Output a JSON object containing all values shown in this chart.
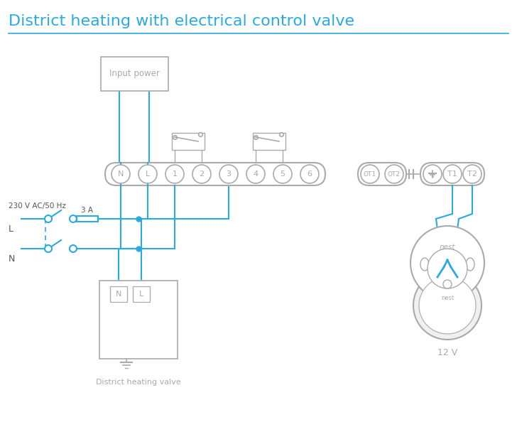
{
  "title": "District heating with electrical control valve",
  "title_color": "#29abe2",
  "title_fontsize": 16,
  "bg_color": "#ffffff",
  "line_color": "#29abe2",
  "component_color": "#aaaaaa",
  "terminal_strip_labels": [
    "N",
    "L",
    "1",
    "2",
    "3",
    "4",
    "5",
    "6"
  ],
  "ot_labels": [
    "OT1",
    "OT2"
  ],
  "t_labels": [
    "T1",
    "T2"
  ],
  "input_power_label": "Input power",
  "district_valve_label": "District heating valve",
  "v12_label": "12 V",
  "voltage_label": "230 V AC/50 Hz",
  "fuse_label": "3 A",
  "L_label": "L",
  "N_label": "N"
}
